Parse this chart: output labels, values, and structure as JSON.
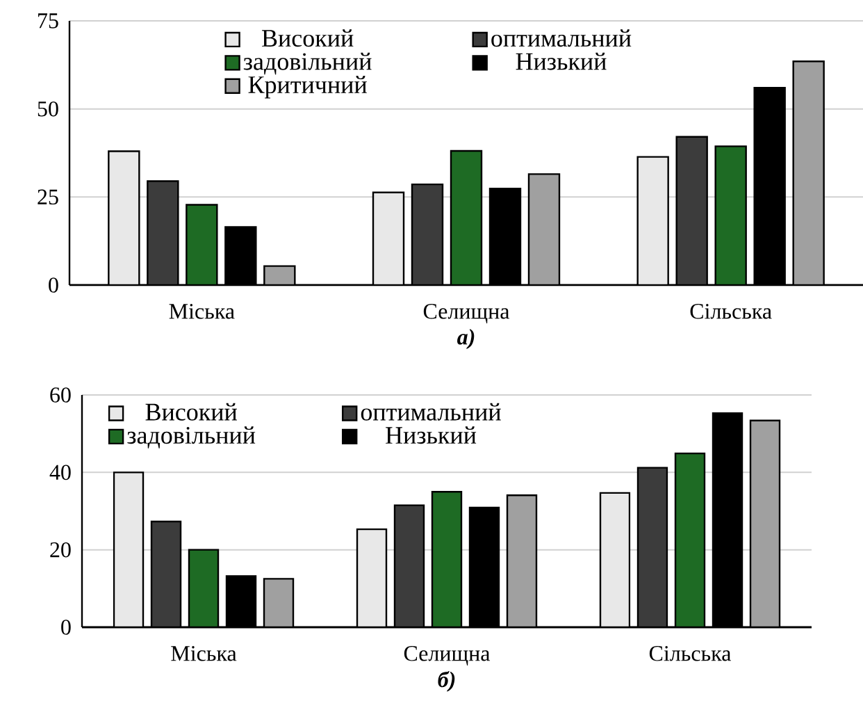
{
  "chart_data": [
    {
      "type": "bar",
      "title": "а)",
      "categories": [
        "Міська",
        "Селищна",
        "Сільська"
      ],
      "series": [
        {
          "name": "Високий",
          "color": "#e8e8e8",
          "values": [
            38,
            26.3,
            36.4
          ]
        },
        {
          "name": "оптимальний",
          "color": "#3c3c3c",
          "values": [
            29.5,
            28.6,
            42.1
          ]
        },
        {
          "name": "задовільний",
          "color": "#1e6b24",
          "values": [
            22.8,
            38.1,
            39.4
          ]
        },
        {
          "name": "Низький",
          "color": "#000000",
          "values": [
            16.5,
            27.4,
            56
          ]
        },
        {
          "name": "Критичний",
          "color": "#a0a0a0",
          "values": [
            5.4,
            31.5,
            63.5
          ]
        }
      ],
      "ylim": [
        0,
        75
      ],
      "yticks": [
        0,
        25,
        50,
        75
      ],
      "grid": "y",
      "legend": "top"
    },
    {
      "type": "bar",
      "title": "б)",
      "categories": [
        "Міська",
        "Селищна",
        "Сільська"
      ],
      "series": [
        {
          "name": "Високий",
          "color": "#e8e8e8",
          "values": [
            40,
            25.3,
            34.7
          ]
        },
        {
          "name": "оптимальний",
          "color": "#3c3c3c",
          "values": [
            27.3,
            31.5,
            41.2
          ]
        },
        {
          "name": "задовільний",
          "color": "#1e6b24",
          "values": [
            20,
            35,
            44.9
          ]
        },
        {
          "name": "Низький",
          "color": "#000000",
          "values": [
            13.2,
            30.9,
            55.3
          ]
        },
        {
          "color": "#a0a0a0",
          "values": [
            12.5,
            34.1,
            53.4
          ]
        }
      ],
      "ylim": [
        0,
        60
      ],
      "yticks": [
        0,
        20,
        40,
        60
      ],
      "grid": "y",
      "legend": "top left"
    }
  ]
}
